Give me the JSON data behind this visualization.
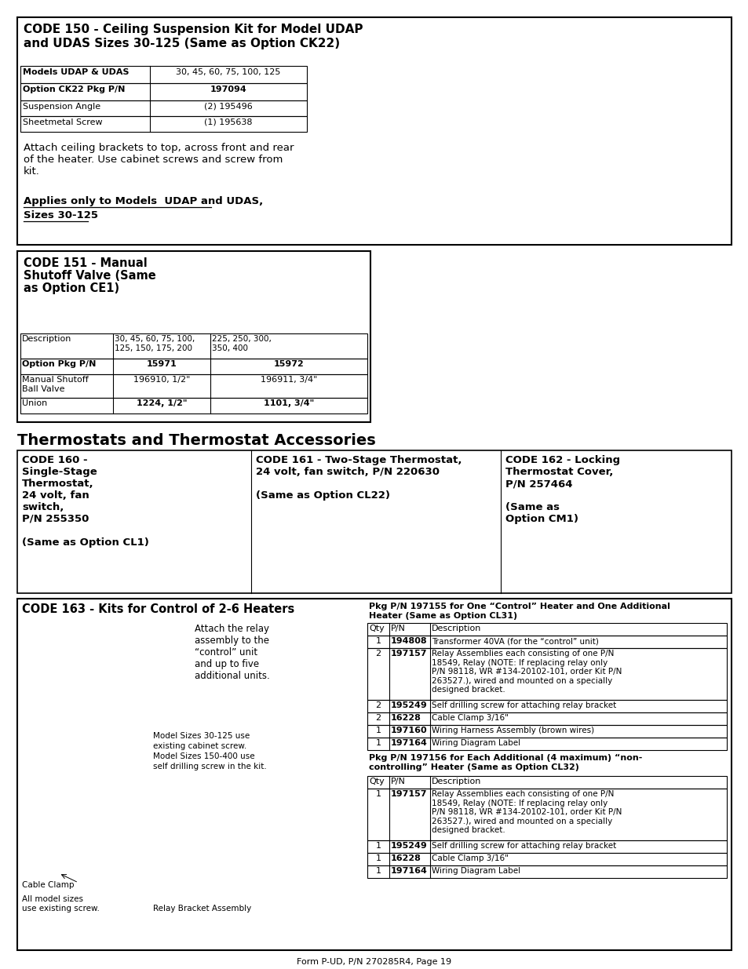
{
  "page_bg": "#ffffff",
  "footer_text": "Form P-UD, P/N 270285R4, Page 19",
  "section150": {
    "title_line1": "CODE 150 - Ceiling Suspension Kit for Model UDAP",
    "title_line2": "and UDAS Sizes 30-125 (Same as Option CK22)",
    "table": [
      [
        "Models UDAP & UDAS",
        "30, 45, 60, 75, 100, 125"
      ],
      [
        "Option CK22 Pkg P/N",
        "197094"
      ],
      [
        "Suspension Angle",
        "(2) 195496"
      ],
      [
        "Sheetmetal Screw",
        "(1) 195638"
      ]
    ],
    "table_bold_rows": [
      0,
      1
    ],
    "desc": "Attach ceiling brackets to top, across front and rear\nof the heater. Use cabinet screws and screw from\nkit.",
    "note_line1": "Applies only to Models  UDAP and UDAS,",
    "note_line2": "Sizes 30-125 "
  },
  "section151": {
    "title_line1": "CODE 151 - Manual",
    "title_line2": "Shutoff Valve (Same",
    "title_line3": "as Option CE1)",
    "table_header": [
      "Description",
      "30, 45, 60, 75, 100,\n125, 150, 175, 200",
      "225, 250, 300,\n350, 400"
    ],
    "table_rows": [
      [
        "Option Pkg P/N",
        "15971",
        "15972"
      ],
      [
        "Manual Shutoff\nBall Valve",
        "196910, 1/2\"",
        "196911, 3/4\""
      ],
      [
        "Union",
        "1224, 1/2\"",
        "1101, 3/4\""
      ]
    ],
    "table_bold_col1": [
      0
    ],
    "table_bold_vals": [
      0,
      2,
      3
    ]
  },
  "section_thermo_title": "Thermostats and Thermostat Accessories",
  "section160": {
    "title": "CODE 160 -\nSingle-Stage\nThermostat,\n24 volt, fan\nswitch,\nP/N 255350\n\n(Same as Option CL1)"
  },
  "section161": {
    "title": "CODE 161 - Two-Stage Thermostat,\n24 volt, fan switch, P/N 220630\n\n(Same as Option CL22)"
  },
  "section162": {
    "title": "CODE 162 - Locking\nThermostat Cover,\nP/N 257464\n\n(Same as\nOption CM1)"
  },
  "section163": {
    "title": "CODE 163 - Kits for Control of 2-6 Heaters",
    "desc": "Attach the relay\nassembly to the\n“control” unit\nand up to five\nadditional units.",
    "note1_line1": "Model Sizes 30-125 use",
    "note1_line2": "existing cabinet screw.",
    "note1_line3": "Model Sizes 150-400 use",
    "note1_line4": "self drilling screw in the kit.",
    "label_cable": "Cable Clamp",
    "label_all": "All model sizes\nuse existing screw.",
    "label_relay": "Relay Bracket Assembly",
    "pkg1_title_line1": "Pkg P/N 197155 for One “Control” Heater and One Additional",
    "pkg1_title_line2": "Heater (Same as Option CL31)",
    "pkg1_header": [
      "Qty",
      "P/N",
      "Description"
    ],
    "pkg1_rows": [
      [
        "1",
        "194808",
        "Transformer 40VA (for the “control” unit)"
      ],
      [
        "2",
        "197157",
        "Relay Assemblies each consisting of one P/N\n18549, Relay (NOTE: If replacing relay only\nP/N 98118, WR #134-20102-101, order Kit P/N\n263527.), wired and mounted on a specially\ndesigned bracket."
      ],
      [
        "2",
        "195249",
        "Self drilling screw for attaching relay bracket"
      ],
      [
        "2",
        "16228",
        "Cable Clamp 3/16\""
      ],
      [
        "1",
        "197160",
        "Wiring Harness Assembly (brown wires)"
      ],
      [
        "1",
        "197164",
        "Wiring Diagram Label"
      ]
    ],
    "pkg2_title_line1": "Pkg P/N 197156 for Each Additional (4 maximum) “non-",
    "pkg2_title_line2": "controlling” Heater (Same as Option CL32)",
    "pkg2_header": [
      "Qty",
      "P/N",
      "Description"
    ],
    "pkg2_rows": [
      [
        "1",
        "197157",
        "Relay Assemblies each consisting of one P/N\n18549, Relay (NOTE: If replacing relay only\nP/N 98118, WR #134-20102-101, order Kit P/N\n263527.), wired and mounted on a specially\ndesigned bracket."
      ],
      [
        "1",
        "195249",
        "Self drilling screw for attaching relay bracket"
      ],
      [
        "1",
        "16228",
        "Cable Clamp 3/16\""
      ],
      [
        "1",
        "197164",
        "Wiring Diagram Label"
      ]
    ]
  }
}
